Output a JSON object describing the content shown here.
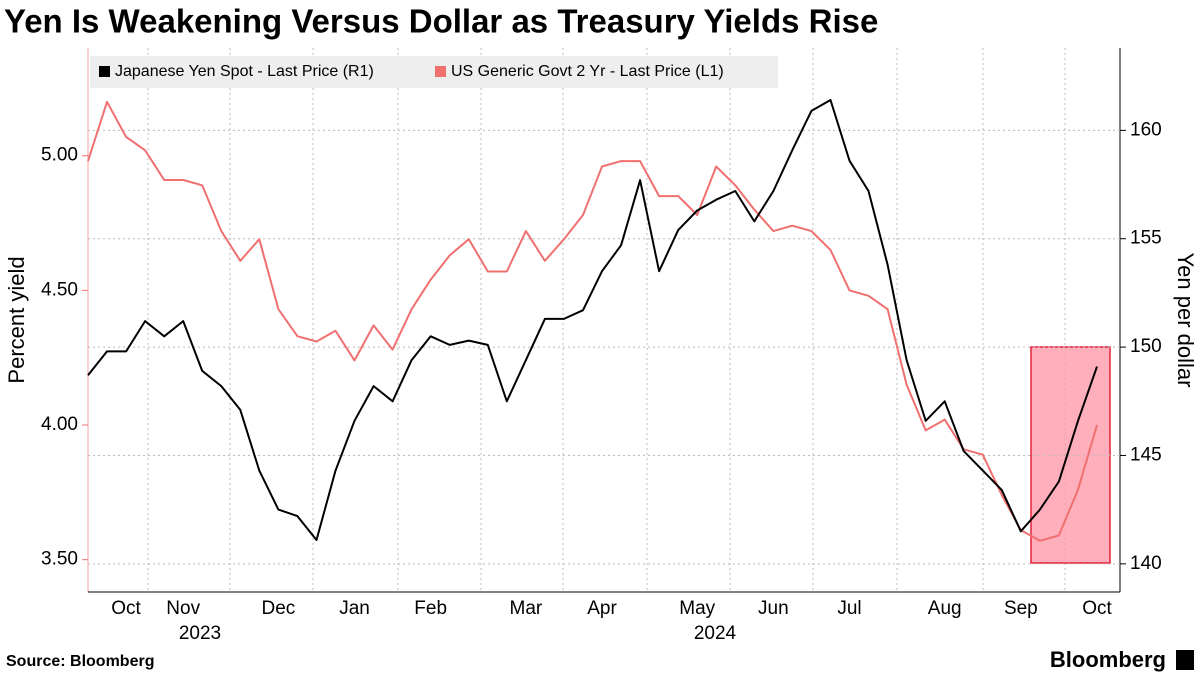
{
  "chart_data": {
    "type": "line",
    "title": "Yen Is Weakening Versus Dollar as Treasury Yields Rise",
    "ylabel": "Percent yield",
    "y2label": "Yen per dollar",
    "source": "Source: Bloomberg",
    "brand": "Bloomberg",
    "year_labels": [
      "2023",
      "2024"
    ],
    "categories": [
      null,
      null,
      "Oct",
      null,
      null,
      "Nov",
      null,
      null,
      null,
      null,
      "Dec",
      null,
      null,
      null,
      "Jan",
      null,
      null,
      null,
      "Feb",
      null,
      null,
      null,
      null,
      "Mar",
      null,
      null,
      null,
      "Apr",
      null,
      null,
      null,
      null,
      "May",
      null,
      null,
      null,
      "Jun",
      null,
      null,
      null,
      "Jul",
      null,
      null,
      null,
      null,
      "Aug",
      null,
      null,
      null,
      "Sep",
      null,
      null,
      null,
      "Oct"
    ],
    "series": [
      {
        "name": "Japanese Yen Spot - Last Price (R1)",
        "color": "#000000",
        "axis": "y2",
        "values": [
          148.7,
          149.8,
          149.8,
          151.2,
          150.5,
          151.2,
          148.9,
          148.2,
          147.1,
          144.3,
          142.5,
          142.2,
          141.1,
          144.3,
          146.6,
          148.2,
          147.5,
          149.4,
          150.5,
          150.1,
          150.3,
          150.1,
          147.5,
          149.4,
          151.3,
          151.3,
          151.7,
          153.5,
          154.7,
          157.7,
          153.5,
          155.4,
          156.3,
          156.8,
          157.2,
          155.8,
          157.2,
          159.1,
          160.9,
          161.4,
          158.6,
          157.2,
          153.8,
          149.4,
          146.6,
          147.5,
          145.2,
          144.3,
          143.4,
          141.5,
          142.5,
          143.8,
          146.6,
          149.1
        ]
      },
      {
        "name": "US Generic Govt 2 Yr - Last Price (L1)",
        "color": "#f07070",
        "values": [
          4.98,
          5.2,
          5.07,
          5.02,
          4.91,
          4.91,
          4.89,
          4.72,
          4.61,
          4.69,
          4.43,
          4.33,
          4.31,
          4.35,
          4.24,
          4.37,
          4.28,
          4.43,
          4.54,
          4.63,
          4.69,
          4.57,
          4.57,
          4.72,
          4.61,
          4.69,
          4.78,
          4.96,
          4.98,
          4.98,
          4.85,
          4.85,
          4.78,
          4.96,
          4.89,
          4.8,
          4.72,
          4.74,
          4.72,
          4.65,
          4.5,
          4.48,
          4.43,
          4.15,
          3.98,
          4.02,
          3.91,
          3.89,
          3.74,
          3.61,
          3.57,
          3.59,
          3.76,
          4.0
        ]
      }
    ],
    "ylim": [
      3.38,
      5.4
    ],
    "yticks": [
      {
        "value": 3.5,
        "label": "3.50"
      },
      {
        "value": 4,
        "label": "4.00"
      },
      {
        "value": 4.5,
        "label": "4.50"
      },
      {
        "value": 5,
        "label": "5.00"
      }
    ],
    "y2lim": [
      138.7,
      163.8
    ],
    "y2ticks": [
      140,
      145,
      150,
      155,
      160
    ],
    "grid": true
  }
}
